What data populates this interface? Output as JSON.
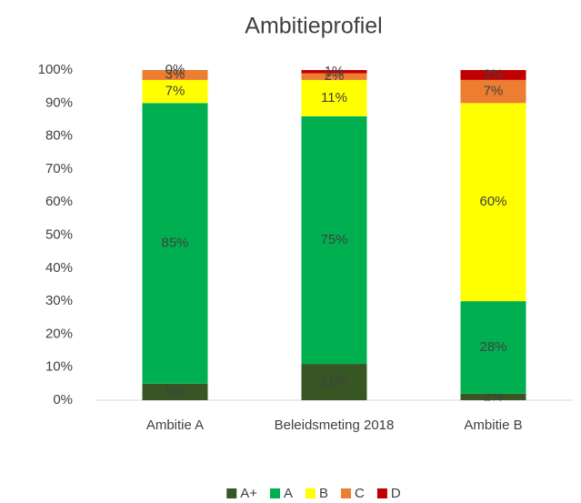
{
  "chart_data": {
    "type": "stacked_bar",
    "title": "Ambitieprofiel",
    "categories": [
      "Ambitie A",
      "Beleidsmeting 2018",
      "Ambitie B"
    ],
    "series": [
      {
        "name": "A+",
        "color": "#375623",
        "values": [
          5,
          11,
          2
        ],
        "value_labels": [
          "5%",
          "11%",
          "2%"
        ]
      },
      {
        "name": "A",
        "color": "#00b050",
        "values": [
          85,
          75,
          28
        ],
        "value_labels": [
          "85%",
          "75%",
          "28%"
        ]
      },
      {
        "name": "B",
        "color": "#ffff00",
        "values": [
          7,
          11,
          60
        ],
        "value_labels": [
          "7%",
          "11%",
          "60%"
        ]
      },
      {
        "name": "C",
        "color": "#ed7d31",
        "values": [
          3,
          2,
          7
        ],
        "value_labels": [
          "3%",
          "2%",
          "7%"
        ]
      },
      {
        "name": "D",
        "color": "#c00000",
        "values": [
          0,
          1,
          3
        ],
        "value_labels": [
          "0%",
          "1%",
          "3%"
        ]
      }
    ],
    "ylim": [
      0,
      100
    ],
    "yticks": [
      {
        "value": 0,
        "label": "0%"
      },
      {
        "value": 10,
        "label": "10%"
      },
      {
        "value": 20,
        "label": "20%"
      },
      {
        "value": 30,
        "label": "30%"
      },
      {
        "value": 40,
        "label": "40%"
      },
      {
        "value": 50,
        "label": "50%"
      },
      {
        "value": 60,
        "label": "60%"
      },
      {
        "value": 70,
        "label": "70%"
      },
      {
        "value": 80,
        "label": "80%"
      },
      {
        "value": 90,
        "label": "90%"
      },
      {
        "value": 100,
        "label": "100%"
      }
    ],
    "grid": false,
    "legend": "bottom"
  }
}
